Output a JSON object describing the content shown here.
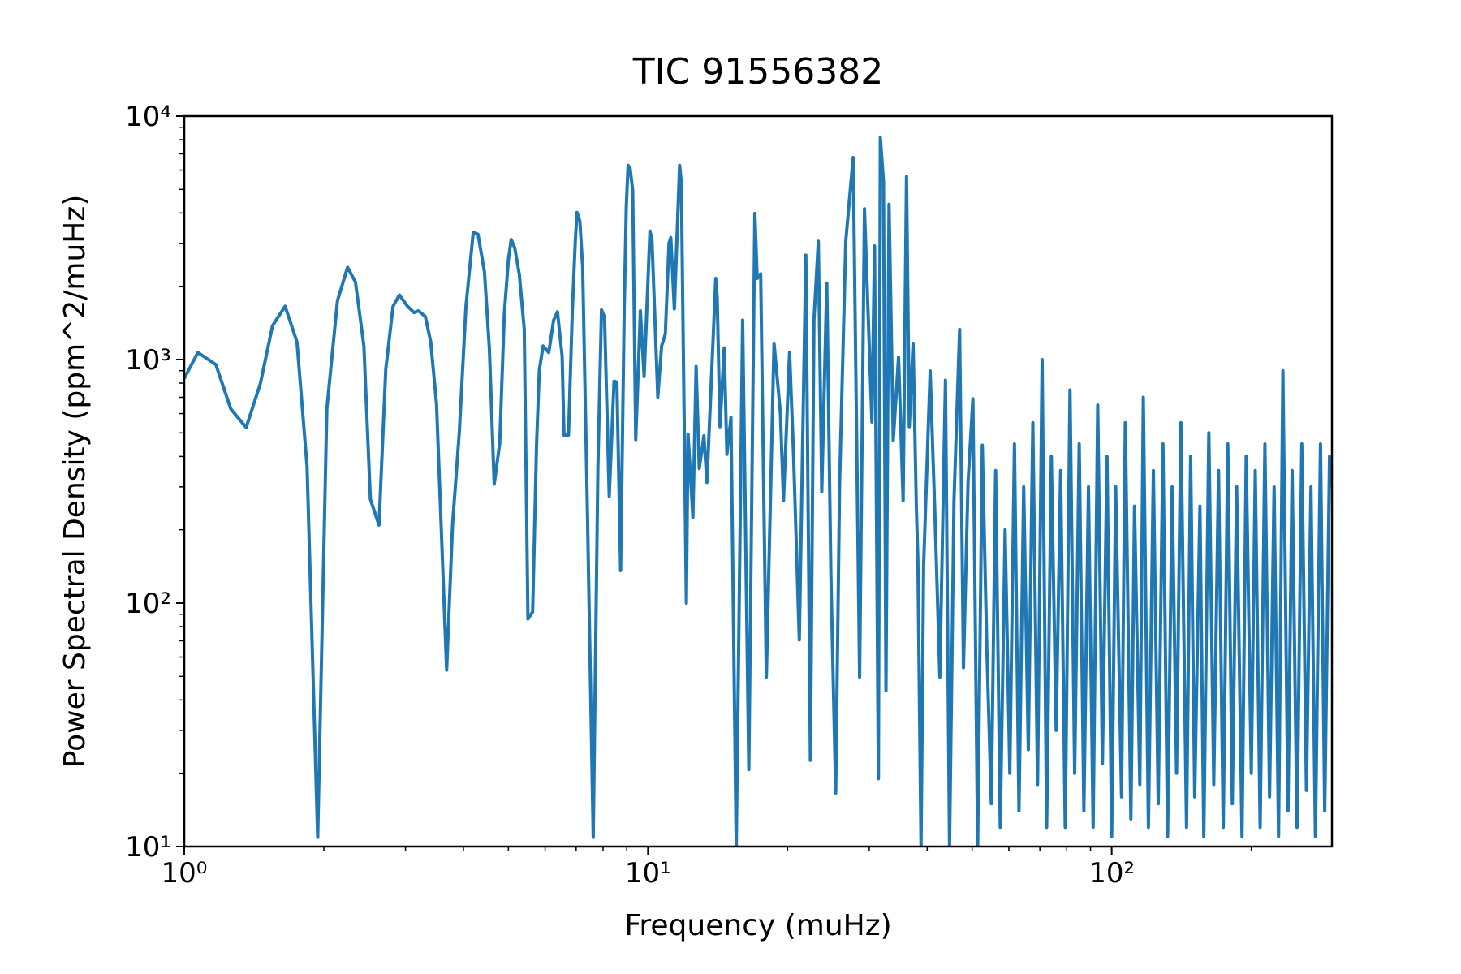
{
  "chart_data": {
    "type": "line",
    "title": "TIC 91556382",
    "xlabel": "Frequency (muHz)",
    "ylabel": "Power Spectral Density (ppm^2/muHz)",
    "xscale": "log",
    "yscale": "log",
    "color": "#1f77b4",
    "xlim": [
      1,
      298.5
    ],
    "ylim": [
      10,
      10000
    ],
    "xticks": [
      {
        "value": 1,
        "label": "10⁰"
      },
      {
        "value": 10,
        "label": "10¹"
      },
      {
        "value": 100,
        "label": "10²"
      }
    ],
    "yticks": [
      {
        "value": 10,
        "label": "10¹"
      },
      {
        "value": 100,
        "label": "10²"
      },
      {
        "value": 1000,
        "label": "10³"
      },
      {
        "value": 10000,
        "label": "10⁴"
      }
    ],
    "xminorticks": [
      2,
      3,
      4,
      5,
      6,
      7,
      8,
      9,
      20,
      30,
      40,
      50,
      60,
      70,
      80,
      90,
      200
    ],
    "yminorticks": [
      20,
      30,
      40,
      50,
      60,
      70,
      80,
      90,
      200,
      300,
      400,
      500,
      600,
      700,
      800,
      900,
      2000,
      3000,
      4000,
      5000,
      6000,
      7000,
      8000,
      9000
    ],
    "x": [
      1.0,
      1.07,
      1.17,
      1.26,
      1.36,
      1.46,
      1.55,
      1.65,
      1.75,
      1.84,
      1.94,
      2.03,
      2.14,
      2.25,
      2.34,
      2.44,
      2.52,
      2.63,
      2.72,
      2.82,
      2.91,
      3.03,
      3.13,
      3.2,
      3.31,
      3.4,
      3.5,
      3.68,
      3.79,
      3.92,
      4.05,
      4.2,
      4.3,
      4.44,
      4.55,
      4.66,
      4.79,
      4.9,
      5.0,
      5.07,
      5.16,
      5.28,
      5.41,
      5.51,
      5.64,
      5.75,
      5.83,
      5.94,
      6.11,
      6.26,
      6.38,
      6.53,
      6.59,
      6.74,
      6.87,
      6.97,
      7.03,
      7.13,
      7.23,
      7.41,
      7.62,
      7.8,
      7.94,
      8.06,
      8.25,
      8.45,
      8.57,
      8.73,
      8.89,
      8.98,
      9.06,
      9.15,
      9.27,
      9.41,
      9.63,
      9.81,
      10.1,
      10.2,
      10.5,
      10.7,
      10.9,
      11.1,
      11.2,
      11.4,
      11.7,
      11.8,
      12.1,
      12.2,
      12.5,
      12.7,
      12.9,
      13.2,
      13.4,
      14.0,
      14.1,
      14.3,
      14.6,
      14.8,
      15.1,
      15.5,
      16.0,
      16.5,
      17.0,
      17.2,
      17.5,
      18.0,
      18.7,
      19.3,
      19.6,
      20.2,
      20.6,
      21.2,
      21.9,
      22.4,
      22.8,
      23.3,
      23.7,
      24.3,
      24.8,
      25.4,
      25.9,
      26.7,
      27.7,
      28.6,
      29.3,
      30.4,
      30.8,
      31.4,
      31.7,
      32.2,
      32.6,
      33.1,
      33.8,
      34.7,
      35.5,
      36.1,
      36.6,
      37.3,
      37.9,
      38.2,
      38.8,
      39.3,
      40.6,
      41.6,
      42.6,
      43.8,
      44.7,
      45.7,
      47.0,
      47.9,
      49.0,
      50.2,
      51.4,
      52.6,
      53.8,
      55.0,
      56.2,
      57.5,
      58.9,
      60.3,
      61.7,
      63.1,
      64.6,
      66.1,
      67.6,
      69.2,
      70.8,
      72.4,
      74.1,
      75.9,
      77.6,
      79.4,
      81.3,
      83.2,
      85.1,
      87.1,
      89.1,
      91.2,
      93.3,
      95.5,
      97.7,
      100,
      102,
      105,
      107,
      110,
      112,
      115,
      117,
      120,
      123,
      126,
      129,
      132,
      135,
      138,
      141,
      145,
      148,
      151,
      155,
      158,
      162,
      166,
      170,
      174,
      178,
      182,
      186,
      191,
      195,
      200,
      204,
      209,
      214,
      219,
      224,
      229,
      234,
      240,
      245,
      251,
      257,
      263,
      269,
      275,
      282,
      288,
      295,
      298.5
    ],
    "values": [
      836,
      1069,
      953,
      627,
      526,
      800,
      1377,
      1655,
      1183,
      364,
      10.9,
      627,
      1745,
      2393,
      2080,
      1137,
      267,
      209,
      913,
      1655,
      1841,
      1655,
      1559,
      1585,
      1503,
      1183,
      654,
      53,
      211,
      508,
      1655,
      3340,
      3270,
      2291,
      1107,
      308,
      453,
      1545,
      2570,
      3113,
      2877,
      2233,
      1330,
      86,
      92,
      445,
      905,
      1137,
      1069,
      1452,
      1571,
      1032,
      490,
      490,
      1600,
      3062,
      4018,
      3707,
      2393,
      215,
      10.9,
      367,
      1600,
      1492,
      275,
      815,
      808,
      136,
      1655,
      4266,
      6281,
      6110,
      4955,
      469,
      1585,
      851,
      3373,
      3113,
      702,
      1137,
      1274,
      3007,
      3170,
      1614,
      6281,
      5370,
      100,
      494,
      225,
      937,
      357,
      486,
      313,
      2154,
      1807,
      530,
      1117,
      408,
      578,
      10,
      1452,
      20.7,
      3981,
      2154,
      2250,
      49.7,
      1167,
      604,
      263,
      1069,
      408,
      70.6,
      2685,
      22.6,
      1452,
      3062,
      287,
      2061,
      130,
      16.6,
      313,
      3062,
      6761,
      49.7,
      4159,
      554,
      2930,
      19.0,
      8166,
      5410,
      43.6,
      4345,
      465,
      1023,
      263,
      5650,
      530,
      1167,
      252,
      149,
      10,
      142,
      897,
      221,
      49.7,
      822,
      10,
      263,
      1330,
      54.3,
      313,
      690,
      10,
      445,
      64.7,
      15,
      350,
      12,
      200,
      20,
      450,
      14,
      300,
      25,
      550,
      18,
      1000,
      12,
      400,
      30,
      350,
      12,
      750,
      20,
      450,
      14,
      300,
      12,
      650,
      22,
      400,
      11,
      300,
      16,
      550,
      13,
      250,
      18,
      700,
      12,
      350,
      15,
      450,
      11,
      300,
      20,
      550,
      12,
      400,
      16,
      250,
      11,
      500,
      18,
      350,
      12,
      450,
      15,
      300,
      11,
      400,
      20,
      350,
      12,
      450,
      16,
      300,
      11,
      900,
      14,
      350,
      12,
      450,
      17,
      300,
      11,
      450,
      14,
      400,
      300
    ]
  }
}
